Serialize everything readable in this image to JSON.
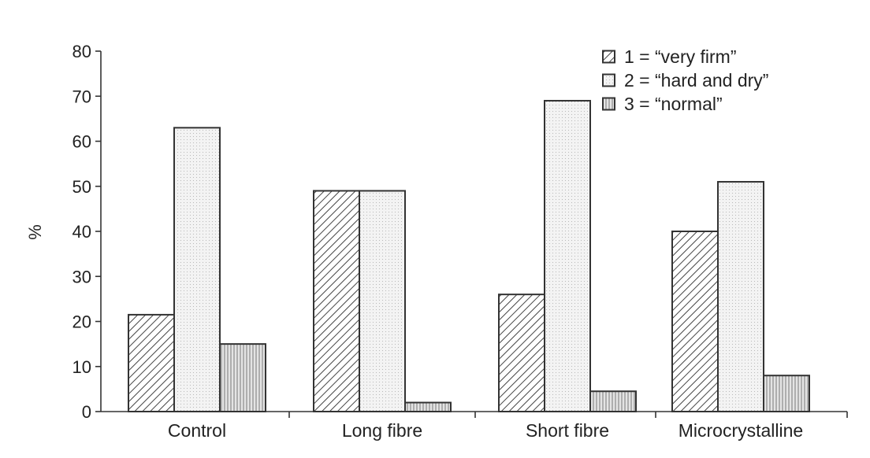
{
  "chart_data": {
    "type": "bar",
    "title": "",
    "xlabel": "",
    "ylabel": "%",
    "ylim": [
      0,
      80
    ],
    "yticks": [
      0,
      10,
      20,
      30,
      40,
      50,
      60,
      70,
      80
    ],
    "grid": false,
    "legend_position": "top-right",
    "categories": [
      "Control",
      "Long fibre",
      "Short fibre",
      "Microcrystalline"
    ],
    "series": [
      {
        "name": "1 = “very firm”",
        "pattern": "diagonal-hatch",
        "values": [
          21.5,
          49,
          26,
          40
        ]
      },
      {
        "name": "2 = “hard and dry”",
        "pattern": "light-dotted",
        "values": [
          63,
          49,
          69,
          51
        ]
      },
      {
        "name": "3 = “normal”",
        "pattern": "vertical-lines",
        "values": [
          15,
          2,
          4.5,
          8
        ]
      }
    ]
  }
}
